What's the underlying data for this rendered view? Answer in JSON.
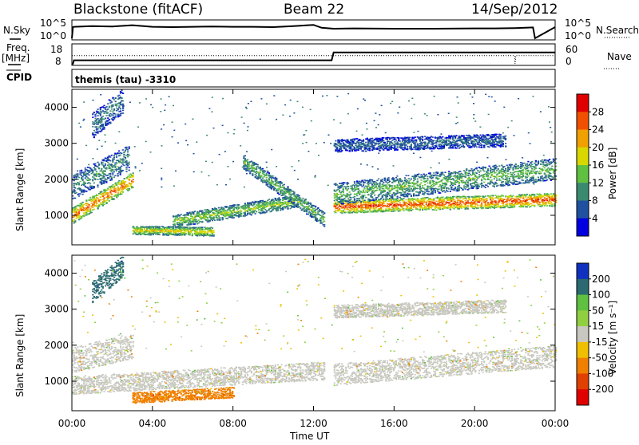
{
  "header": {
    "radar": "Blackstone (fitACF)",
    "beam": "Beam 22",
    "date": "14/Sep/2012"
  },
  "panels": {
    "nsky_label": "N.Sky",
    "nsky_ticks": [
      "10^5",
      "10^0"
    ],
    "nsearch_label": "N.Search",
    "nsearch_ticks": [
      "10^5",
      "10^0"
    ],
    "freq_label": "Freq.",
    "freq_unit": "[MHz]",
    "freq_ticks": [
      "18",
      "8"
    ],
    "nave_label": "Nave",
    "nave_ticks": [
      "60",
      "0"
    ],
    "cpid_label": "CPID",
    "cpid_value": "themis (tau) -3310"
  },
  "colorbars": {
    "power": {
      "label": "Power [dB]",
      "ticks": [
        "28",
        "24",
        "20",
        "16",
        "12",
        "8",
        "4"
      ],
      "colors": [
        "#e00000",
        "#f05000",
        "#f0a000",
        "#d8d800",
        "#60c040",
        "#3a8a70",
        "#2050a0",
        "#0000e0"
      ]
    },
    "velocity": {
      "label": "Velocity [m s⁻¹]",
      "ticks": [
        "200",
        "100",
        "50",
        "15",
        "-15",
        "-50",
        "-100",
        "-200"
      ],
      "colors": [
        "#1030c0",
        "#2a6a70",
        "#60c040",
        "#90d040",
        "#c8c8c0",
        "#f0c000",
        "#f08000",
        "#e04000",
        "#e00000"
      ]
    }
  },
  "xaxis": {
    "label": "Time UT",
    "ticks": [
      "00:00",
      "04:00",
      "08:00",
      "12:00",
      "16:00",
      "20:00",
      "00:00"
    ]
  },
  "yaxis": {
    "label": "Slant Range [km]",
    "ticks": [
      "4000",
      "3000",
      "2000",
      "1000"
    ]
  },
  "chart_data": [
    {
      "type": "line",
      "title": "N.Sky / N.Search",
      "x_hours": [
        0,
        0.05,
        0.1,
        1,
        2,
        3,
        4,
        5,
        6,
        7,
        8,
        9,
        10,
        11,
        12,
        12.4,
        13,
        14,
        16,
        18,
        20,
        21,
        22,
        22.9,
        23,
        24
      ],
      "values_log10": [
        0,
        3.5,
        3.6,
        3.8,
        3.7,
        4.1,
        3.6,
        3.5,
        3.6,
        3.7,
        3.6,
        3.6,
        3.5,
        3.8,
        4.2,
        3.3,
        3.0,
        3.1,
        3.0,
        3.0,
        3.1,
        3.1,
        3.2,
        3.4,
        0,
        3.5
      ],
      "ylim": [
        0,
        5
      ]
    },
    {
      "type": "line",
      "title": "Freq. / Nave",
      "freq_series": {
        "name": "Freq. [MHz]",
        "x": [
          0,
          0.05,
          0.1,
          12.9,
          13.0,
          24
        ],
        "y": [
          8,
          8,
          10,
          10,
          14.5,
          14.5
        ]
      },
      "nave_series": {
        "name": "Nave",
        "x": [
          0,
          0.05,
          22,
          22.01,
          22.05,
          24
        ],
        "y": [
          28,
          28,
          28,
          0,
          28,
          28
        ]
      },
      "ylim_freq": [
        8,
        18
      ],
      "ylim_nave": [
        0,
        60
      ]
    },
    {
      "type": "heatmap",
      "title": "Power [dB]",
      "xlabel": "Time UT",
      "ylabel": "Slant Range [km]",
      "xlim": [
        0,
        24
      ],
      "ylim": [
        180,
        4500
      ],
      "clim": [
        0,
        30
      ],
      "features": [
        {
          "name": "band A",
          "x": [
            0.0,
            3.0
          ],
          "range_start": [
            1000,
            2000
          ],
          "range_end": [
            1000,
            2200
          ],
          "width": 220,
          "value_peak": 26
        },
        {
          "name": "band B",
          "x": [
            0.0,
            2.8
          ],
          "range_start": [
            1800,
            2600
          ],
          "range_end": [
            1800,
            2600
          ],
          "width": 350,
          "value_peak": 11
        },
        {
          "name": "patch C",
          "x": [
            1.0,
            2.5
          ],
          "range_start": [
            3500,
            4200
          ],
          "range_end": [
            3500,
            4200
          ],
          "width": 350,
          "value_peak": 9
        },
        {
          "name": "band D",
          "x": [
            3.0,
            7.0
          ],
          "range_start": [
            600,
            560
          ],
          "range_end": [
            600,
            560
          ],
          "width": 120,
          "value_peak": 20
        },
        {
          "name": "band E",
          "x": [
            5.0,
            11.0
          ],
          "range_start": [
            850,
            1400
          ],
          "range_end": [
            850,
            1400
          ],
          "width": 180,
          "value_peak": 16
        },
        {
          "name": "arc F",
          "x": [
            8.5,
            12.5
          ],
          "range_start": [
            2500,
            900
          ],
          "range_end": [
            2500,
            900
          ],
          "width": 200,
          "value_peak": 14
        },
        {
          "name": "band G",
          "x": [
            13.0,
            24.0
          ],
          "range_start": [
            1250,
            1450
          ],
          "range_end": [
            1400,
            1200
          ],
          "width": 180,
          "value_peak": 28
        },
        {
          "name": "band H",
          "x": [
            13.0,
            24.0
          ],
          "range_start": [
            1600,
            2300
          ],
          "range_end": [
            1600,
            2300
          ],
          "width": 300,
          "value_peak": 14
        },
        {
          "name": "band I",
          "x": [
            13.0,
            21.5
          ],
          "range_start": [
            2950,
            3100
          ],
          "range_end": [
            2950,
            3100
          ],
          "width": 180,
          "value_peak": 8
        }
      ]
    },
    {
      "type": "heatmap",
      "title": "Velocity [m s⁻¹]",
      "xlabel": "Time UT",
      "ylabel": "Slant Range [km]",
      "xlim": [
        0,
        24
      ],
      "ylim": [
        180,
        4500
      ],
      "clim": [
        -200,
        200
      ],
      "features": [
        {
          "name": "ground scatter low",
          "x": [
            0.0,
            12.5
          ],
          "range_start": [
            900,
            1300
          ],
          "range_end": [
            900,
            1300
          ],
          "width": 250,
          "value": 0
        },
        {
          "name": "ground scatter band",
          "x": [
            0.0,
            3.0
          ],
          "range_start": [
            1600,
            2000
          ],
          "range_end": [
            1600,
            2000
          ],
          "width": 350,
          "value": 0
        },
        {
          "name": "late ground scatter",
          "x": [
            13.0,
            24.0
          ],
          "range_start": [
            1200,
            1700
          ],
          "range_end": [
            1200,
            1700
          ],
          "width": 300,
          "value": 0
        },
        {
          "name": "late upper band",
          "x": [
            13.0,
            21.5
          ],
          "range_start": [
            2950,
            3100
          ],
          "range_end": [
            2950,
            3100
          ],
          "width": 180,
          "value": 0
        },
        {
          "name": "early negative patch",
          "x": [
            3.0,
            8.0
          ],
          "range_start": [
            550,
            700
          ],
          "range_end": [
            550,
            700
          ],
          "width": 150,
          "value": -60
        },
        {
          "name": "positive patch",
          "x": [
            1.0,
            2.5
          ],
          "range_start": [
            3500,
            4200
          ],
          "range_end": [
            3500,
            4200
          ],
          "width": 300,
          "value": 150
        }
      ]
    }
  ]
}
